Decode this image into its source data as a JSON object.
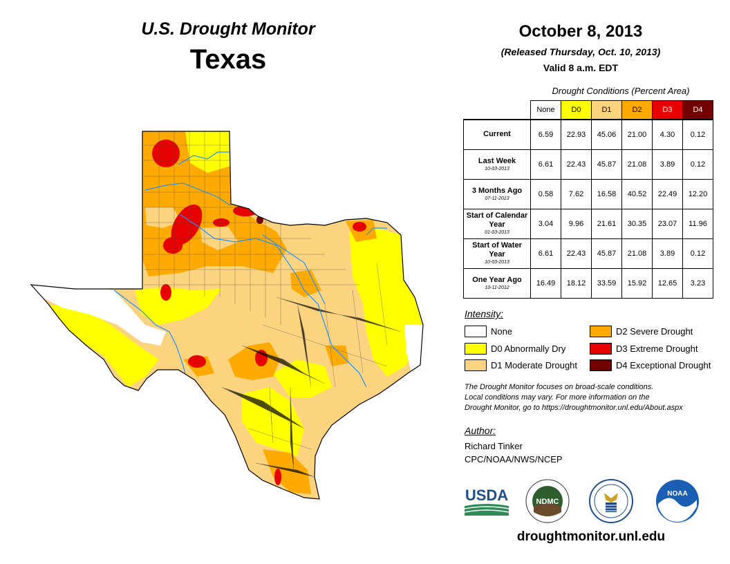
{
  "header": {
    "product": "U.S. Drought Monitor",
    "state": "Texas",
    "date": "October 8, 2013",
    "released": "(Released Thursday, Oct. 10, 2013)",
    "valid": "Valid 8 a.m. EDT"
  },
  "table": {
    "caption": "Drought Conditions (Percent Area)",
    "columns": [
      "None",
      "D0",
      "D1",
      "D2",
      "D3",
      "D4"
    ],
    "column_colors": [
      "#ffffff",
      "#ffff00",
      "#fcd37f",
      "#ffaa00",
      "#e60000",
      "#730000"
    ],
    "rows": [
      {
        "label": "Current",
        "sub": "",
        "values": [
          "6.59",
          "22.93",
          "45.06",
          "21.00",
          "4.30",
          "0.12"
        ]
      },
      {
        "label": "Last Week",
        "sub": "10-03-2013",
        "values": [
          "6.61",
          "22.43",
          "45.87",
          "21.08",
          "3.89",
          "0.12"
        ]
      },
      {
        "label": "3 Months Ago",
        "sub": "07-11-2013",
        "values": [
          "0.58",
          "7.62",
          "16.58",
          "40.52",
          "22.49",
          "12.20"
        ]
      },
      {
        "label": "Start of Calendar Year",
        "sub": "01-03-2013",
        "values": [
          "3.04",
          "9.96",
          "21.61",
          "30.35",
          "23.07",
          "11.96"
        ]
      },
      {
        "label": "Start of Water Year",
        "sub": "10-03-2013",
        "values": [
          "6.61",
          "22.43",
          "45.87",
          "21.08",
          "3.89",
          "0.12"
        ]
      },
      {
        "label": "One Year Ago",
        "sub": "10-11-2012",
        "values": [
          "16.49",
          "18.12",
          "33.59",
          "15.92",
          "12.65",
          "3.23"
        ]
      }
    ]
  },
  "legend": {
    "title": "Intensity:",
    "items": [
      {
        "label": "None",
        "color": "#ffffff"
      },
      {
        "label": "D0 Abnormally Dry",
        "color": "#ffff00"
      },
      {
        "label": "D1 Moderate Drought",
        "color": "#fcd37f"
      },
      {
        "label": "D2 Severe Drought",
        "color": "#ffaa00"
      },
      {
        "label": "D3 Extreme Drought",
        "color": "#e60000"
      },
      {
        "label": "D4 Exceptional Drought",
        "color": "#730000"
      }
    ]
  },
  "note": {
    "line1": "The Drought Monitor focuses on broad-scale conditions.",
    "line2": "Local conditions may vary. For more information on the",
    "line3": "Drought Monitor, go to https://droughtmonitor.unl.edu/About.aspx"
  },
  "author": {
    "title": "Author:",
    "name": "Richard Tinker",
    "org": "CPC/NOAA/NWS/NCEP"
  },
  "logos": {
    "usda": "USDA",
    "ndmc": "NDMC",
    "noaa": "NOAA"
  },
  "url": "droughtmonitor.unl.edu"
}
